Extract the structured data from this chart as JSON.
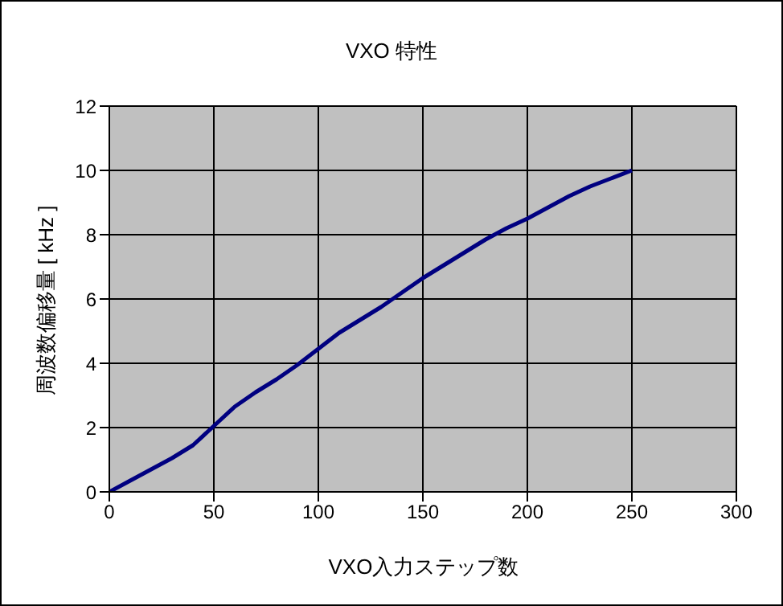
{
  "chart_data": {
    "type": "line",
    "title": "VXO 特性",
    "xlabel": "VXO入力ステップ数",
    "ylabel": "周波数偏移量 [ kHz ]",
    "x": [
      0,
      10,
      20,
      30,
      40,
      50,
      60,
      70,
      80,
      90,
      100,
      110,
      120,
      130,
      140,
      150,
      160,
      170,
      180,
      190,
      200,
      210,
      220,
      230,
      240,
      250
    ],
    "series": [
      {
        "color": "#000080",
        "values": [
          0,
          0.35,
          0.7,
          1.05,
          1.45,
          2.05,
          2.65,
          3.1,
          3.5,
          3.95,
          4.45,
          4.95,
          5.35,
          5.75,
          6.2,
          6.65,
          7.05,
          7.45,
          7.85,
          8.2,
          8.5,
          8.85,
          9.2,
          9.5,
          9.75,
          10
        ]
      }
    ],
    "xlim": [
      0,
      300
    ],
    "xticks": [
      0,
      50,
      100,
      150,
      200,
      250,
      300
    ],
    "ylim": [
      0,
      12
    ],
    "yticks": [
      0,
      2,
      4,
      6,
      8,
      10,
      12
    ],
    "grid": true,
    "legend": false,
    "marker": "none",
    "line_style": "solid"
  }
}
